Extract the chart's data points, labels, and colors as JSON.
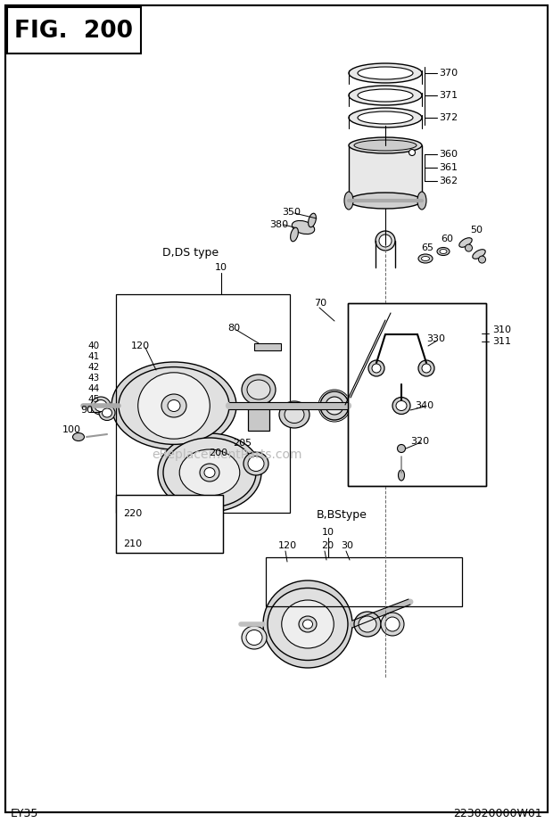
{
  "bg": "#ffffff",
  "lc": "#000000",
  "gc": "#cccccc",
  "title": "FIG.  200",
  "footer_left": "EY35",
  "footer_right": "223020000W01",
  "watermark": "eReplacementParts.com"
}
